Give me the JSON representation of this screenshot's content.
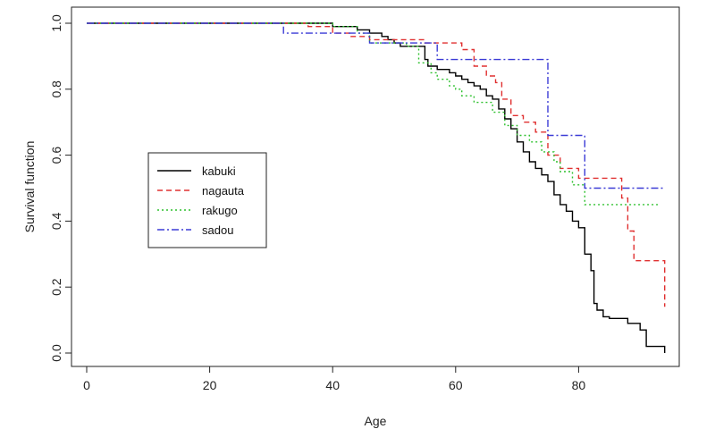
{
  "chart_data": {
    "type": "line",
    "step": true,
    "xlabel": "Age",
    "ylabel": "Survival function",
    "xlim": [
      0,
      95
    ],
    "ylim": [
      0,
      1.0
    ],
    "x_ticks": [
      "0",
      "20",
      "40",
      "60",
      "80"
    ],
    "y_ticks": [
      "0.0",
      "0.2",
      "0.4",
      "0.6",
      "0.8",
      "1.0"
    ],
    "legend_position": "left-middle",
    "series": [
      {
        "name": "kabuki",
        "color": "#000000",
        "dash": "solid",
        "points": [
          [
            0,
            1.0
          ],
          [
            40,
            1.0
          ],
          [
            40,
            0.99
          ],
          [
            44,
            0.99
          ],
          [
            44,
            0.98
          ],
          [
            46,
            0.98
          ],
          [
            46,
            0.97
          ],
          [
            48,
            0.97
          ],
          [
            48,
            0.96
          ],
          [
            49,
            0.96
          ],
          [
            49,
            0.95
          ],
          [
            50,
            0.95
          ],
          [
            50,
            0.94
          ],
          [
            51,
            0.94
          ],
          [
            51,
            0.93
          ],
          [
            55,
            0.93
          ],
          [
            55,
            0.89
          ],
          [
            55.5,
            0.89
          ],
          [
            55.5,
            0.87
          ],
          [
            57,
            0.87
          ],
          [
            57,
            0.86
          ],
          [
            59,
            0.86
          ],
          [
            59,
            0.85
          ],
          [
            60,
            0.85
          ],
          [
            60,
            0.84
          ],
          [
            61,
            0.84
          ],
          [
            61,
            0.83
          ],
          [
            62,
            0.83
          ],
          [
            62,
            0.82
          ],
          [
            63,
            0.82
          ],
          [
            63,
            0.81
          ],
          [
            64,
            0.81
          ],
          [
            64,
            0.8
          ],
          [
            65,
            0.8
          ],
          [
            65,
            0.78
          ],
          [
            66,
            0.78
          ],
          [
            66,
            0.77
          ],
          [
            67,
            0.77
          ],
          [
            67,
            0.74
          ],
          [
            68,
            0.74
          ],
          [
            68,
            0.71
          ],
          [
            69,
            0.71
          ],
          [
            69,
            0.68
          ],
          [
            70,
            0.68
          ],
          [
            70,
            0.64
          ],
          [
            71,
            0.64
          ],
          [
            71,
            0.61
          ],
          [
            72,
            0.61
          ],
          [
            72,
            0.58
          ],
          [
            73,
            0.58
          ],
          [
            73,
            0.56
          ],
          [
            74,
            0.56
          ],
          [
            74,
            0.54
          ],
          [
            75,
            0.54
          ],
          [
            75,
            0.52
          ],
          [
            76,
            0.52
          ],
          [
            76,
            0.48
          ],
          [
            77,
            0.48
          ],
          [
            77,
            0.45
          ],
          [
            78,
            0.45
          ],
          [
            78,
            0.43
          ],
          [
            79,
            0.43
          ],
          [
            79,
            0.4
          ],
          [
            80,
            0.4
          ],
          [
            80,
            0.38
          ],
          [
            81,
            0.38
          ],
          [
            81,
            0.3
          ],
          [
            82,
            0.3
          ],
          [
            82,
            0.25
          ],
          [
            82.5,
            0.25
          ],
          [
            82.5,
            0.15
          ],
          [
            83,
            0.15
          ],
          [
            83,
            0.13
          ],
          [
            84,
            0.13
          ],
          [
            84,
            0.11
          ],
          [
            85,
            0.11
          ],
          [
            85,
            0.105
          ],
          [
            88,
            0.105
          ],
          [
            88,
            0.09
          ],
          [
            90,
            0.09
          ],
          [
            90,
            0.07
          ],
          [
            91,
            0.07
          ],
          [
            91,
            0.02
          ],
          [
            94,
            0.02
          ],
          [
            94,
            0.0
          ]
        ]
      },
      {
        "name": "nagauta",
        "color": "#e03030",
        "dash": "6,4",
        "points": [
          [
            0,
            1.0
          ],
          [
            36,
            1.0
          ],
          [
            36,
            0.99
          ],
          [
            40,
            0.99
          ],
          [
            40,
            0.97
          ],
          [
            43,
            0.97
          ],
          [
            43,
            0.96
          ],
          [
            46,
            0.96
          ],
          [
            46,
            0.95
          ],
          [
            55,
            0.95
          ],
          [
            55,
            0.94
          ],
          [
            61,
            0.94
          ],
          [
            61,
            0.92
          ],
          [
            63,
            0.92
          ],
          [
            63,
            0.87
          ],
          [
            65,
            0.87
          ],
          [
            65,
            0.84
          ],
          [
            66.5,
            0.84
          ],
          [
            66.5,
            0.82
          ],
          [
            67.5,
            0.82
          ],
          [
            67.5,
            0.77
          ],
          [
            69,
            0.77
          ],
          [
            69,
            0.72
          ],
          [
            71,
            0.72
          ],
          [
            71,
            0.7
          ],
          [
            73,
            0.7
          ],
          [
            73,
            0.67
          ],
          [
            75,
            0.67
          ],
          [
            75,
            0.6
          ],
          [
            77,
            0.6
          ],
          [
            77,
            0.56
          ],
          [
            80,
            0.56
          ],
          [
            80,
            0.53
          ],
          [
            87,
            0.53
          ],
          [
            87,
            0.47
          ],
          [
            88,
            0.47
          ],
          [
            88,
            0.37
          ],
          [
            89,
            0.37
          ],
          [
            89,
            0.28
          ],
          [
            94,
            0.28
          ],
          [
            94,
            0.14
          ]
        ]
      },
      {
        "name": "rakugo",
        "color": "#2ec02e",
        "dash": "2,3",
        "points": [
          [
            0,
            1.0
          ],
          [
            40,
            1.0
          ],
          [
            40,
            0.99
          ],
          [
            44,
            0.99
          ],
          [
            44,
            0.97
          ],
          [
            46,
            0.97
          ],
          [
            46,
            0.94
          ],
          [
            52,
            0.94
          ],
          [
            52,
            0.93
          ],
          [
            54,
            0.93
          ],
          [
            54,
            0.88
          ],
          [
            56,
            0.88
          ],
          [
            56,
            0.85
          ],
          [
            57,
            0.85
          ],
          [
            57,
            0.83
          ],
          [
            59,
            0.83
          ],
          [
            59,
            0.81
          ],
          [
            60,
            0.81
          ],
          [
            60,
            0.8
          ],
          [
            61,
            0.8
          ],
          [
            61,
            0.78
          ],
          [
            63,
            0.78
          ],
          [
            63,
            0.76
          ],
          [
            66,
            0.76
          ],
          [
            66,
            0.73
          ],
          [
            68,
            0.73
          ],
          [
            68,
            0.69
          ],
          [
            70,
            0.69
          ],
          [
            70,
            0.66
          ],
          [
            72,
            0.66
          ],
          [
            72,
            0.64
          ],
          [
            74,
            0.64
          ],
          [
            74,
            0.61
          ],
          [
            76,
            0.61
          ],
          [
            76,
            0.58
          ],
          [
            77,
            0.58
          ],
          [
            77,
            0.55
          ],
          [
            79,
            0.55
          ],
          [
            79,
            0.51
          ],
          [
            81,
            0.51
          ],
          [
            81,
            0.45
          ],
          [
            93,
            0.45
          ]
        ]
      },
      {
        "name": "sadou",
        "color": "#3b3bd6",
        "dash": "8,3,2,3",
        "points": [
          [
            0,
            1.0
          ],
          [
            32,
            1.0
          ],
          [
            32,
            0.97
          ],
          [
            46,
            0.97
          ],
          [
            46,
            0.94
          ],
          [
            57,
            0.94
          ],
          [
            57,
            0.89
          ],
          [
            75,
            0.89
          ],
          [
            75,
            0.66
          ],
          [
            81,
            0.66
          ],
          [
            81,
            0.5
          ],
          [
            94,
            0.5
          ]
        ]
      }
    ]
  }
}
